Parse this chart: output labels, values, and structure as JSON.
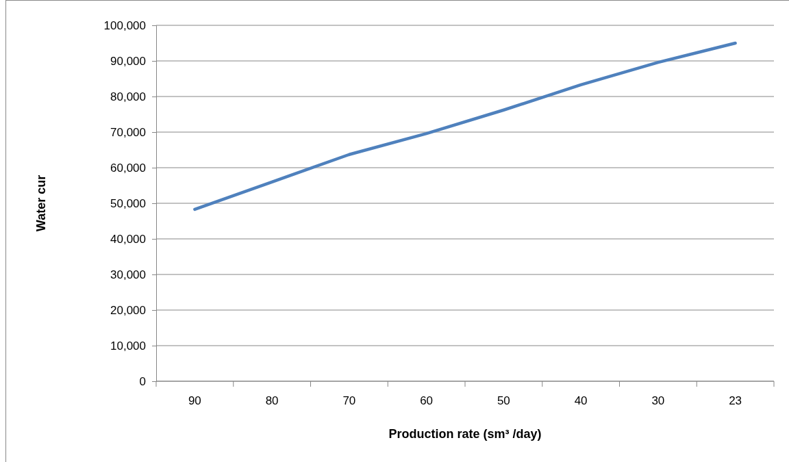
{
  "chart_data": {
    "type": "line",
    "xlabel": "Production rate (sm³ /day)",
    "ylabel": "Water cur",
    "categories": [
      "90",
      "80",
      "70",
      "60",
      "50",
      "40",
      "30",
      "23"
    ],
    "series": [
      {
        "color": "#4f81bd",
        "values": [
          48300,
          56000,
          63700,
          69600,
          76200,
          83300,
          89600,
          95000
        ]
      }
    ],
    "ylim": [
      0,
      100000
    ],
    "yticks": [
      {
        "value": 0,
        "label": "0"
      },
      {
        "value": 10000,
        "label": "10,000"
      },
      {
        "value": 20000,
        "label": "20,000"
      },
      {
        "value": 30000,
        "label": "30,000"
      },
      {
        "value": 40000,
        "label": "40,000"
      },
      {
        "value": 50000,
        "label": "50,000"
      },
      {
        "value": 60000,
        "label": "60,000"
      },
      {
        "value": 70000,
        "label": "70,000"
      },
      {
        "value": 80000,
        "label": "80,000"
      },
      {
        "value": 90000,
        "label": "90,000"
      },
      {
        "value": 100000,
        "label": "100,000"
      }
    ],
    "grid": "y",
    "marker": "none",
    "line_style": "solid"
  }
}
